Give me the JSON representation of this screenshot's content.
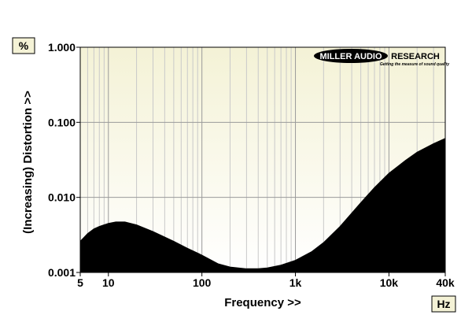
{
  "chart_data": {
    "type": "area",
    "xlabel": "Frequency >>",
    "ylabel": "(Increasing) Distortion >>",
    "x_unit": "Hz",
    "y_unit": "%",
    "x_scale": "log",
    "y_scale": "log",
    "xlim": [
      5,
      40000
    ],
    "ylim": [
      0.001,
      1.0
    ],
    "grid": true,
    "x_ticks": [
      {
        "value": 5,
        "label": "5"
      },
      {
        "value": 10,
        "label": "10"
      },
      {
        "value": 100,
        "label": "100"
      },
      {
        "value": 1000,
        "label": "1k"
      },
      {
        "value": 10000,
        "label": "10k"
      },
      {
        "value": 40000,
        "label": "40k"
      }
    ],
    "y_ticks": [
      {
        "value": 0.001,
        "label": "0.001"
      },
      {
        "value": 0.01,
        "label": "0.010"
      },
      {
        "value": 0.1,
        "label": "0.100"
      },
      {
        "value": 1.0,
        "label": "1.000"
      }
    ],
    "series": [
      {
        "x": [
          5,
          6,
          7,
          8,
          10,
          12,
          15,
          20,
          30,
          50,
          70,
          100,
          150,
          200,
          300,
          400,
          500,
          700,
          1000,
          1500,
          2000,
          3000,
          5000,
          7000,
          10000,
          15000,
          20000,
          30000,
          40000
        ],
        "y": [
          0.0026,
          0.0033,
          0.0038,
          0.0041,
          0.0045,
          0.0047,
          0.0047,
          0.0043,
          0.0035,
          0.0026,
          0.0021,
          0.0017,
          0.0013,
          0.00118,
          0.00112,
          0.00112,
          0.00115,
          0.00125,
          0.00145,
          0.0019,
          0.0025,
          0.0041,
          0.0085,
          0.0135,
          0.021,
          0.031,
          0.04,
          0.052,
          0.061
        ]
      }
    ]
  },
  "logo": {
    "text_left": "MILLER AUDIO",
    "text_right": "RESEARCH",
    "tagline": "Getting the measure of sound quality"
  }
}
